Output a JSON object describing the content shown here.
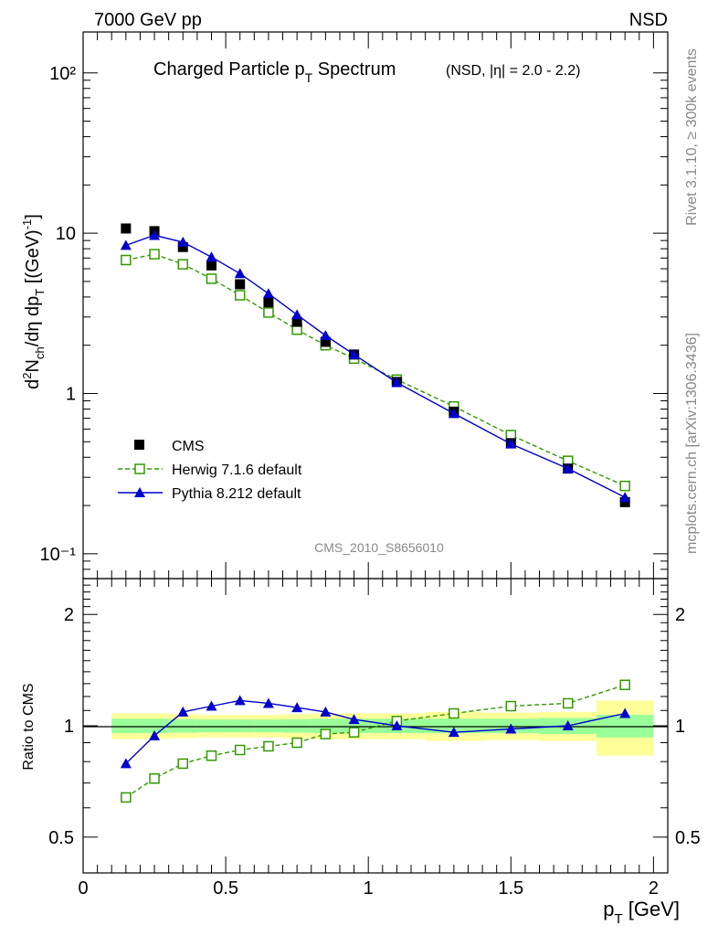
{
  "header": {
    "left": "7000 GeV pp",
    "right": "NSD"
  },
  "side_labels": {
    "rivet": "Rivet 3.1.10, ≥ 300k events",
    "mcplots": "mcplots.cern.ch [arXiv:1306.3436]"
  },
  "watermark": "CMS_2010_S8656010",
  "chart_data": [
    {
      "type": "scatter",
      "title": "Charged Particle pT Spectrum",
      "title_main": "Charged Particle p",
      "title_sub": "T",
      "title_rest": " Spectrum",
      "subtitle": "(NSD, |η| = 2.0 - 2.2)",
      "ylabel": "d²N_ch/dη dp_T [(GeV)^-1]",
      "yscale": "log",
      "ylim": [
        0.07,
        180
      ],
      "xlim": [
        0,
        2.05
      ],
      "ytick_labels": [
        "10⁻¹",
        "1",
        "10",
        "10²"
      ],
      "x": [
        0.15,
        0.25,
        0.35,
        0.45,
        0.55,
        0.65,
        0.75,
        0.85,
        0.95,
        1.1,
        1.3,
        1.5,
        1.7,
        1.9
      ],
      "series": [
        {
          "name": "CMS",
          "style": "marker",
          "color": "#000000",
          "values": [
            10.7,
            10.3,
            8.2,
            6.3,
            4.8,
            3.7,
            2.8,
            2.1,
            1.75,
            1.18,
            0.77,
            0.49,
            0.34,
            0.21
          ]
        },
        {
          "name": "Herwig 7.1.6 default",
          "style": "dashed",
          "color": "#339900",
          "values": [
            6.8,
            7.4,
            6.4,
            5.2,
            4.1,
            3.2,
            2.5,
            2.0,
            1.65,
            1.22,
            0.83,
            0.55,
            0.38,
            0.265
          ]
        },
        {
          "name": "Pythia 8.212 default",
          "style": "solid",
          "color": "#0000cc",
          "values": [
            8.4,
            9.7,
            8.8,
            7.1,
            5.6,
            4.2,
            3.1,
            2.3,
            1.75,
            1.17,
            0.75,
            0.485,
            0.34,
            0.225
          ]
        }
      ]
    },
    {
      "type": "scatter",
      "title": "",
      "ylabel": "Ratio to CMS",
      "xlabel": "p_T [GeV]",
      "xlabel_main": "p",
      "xlabel_sub": "T",
      "xlabel_rest": " [GeV]",
      "yscale": "log",
      "ylim": [
        0.4,
        2.5
      ],
      "xlim": [
        0,
        2.05
      ],
      "ytick_labels": [
        "0.5",
        "1",
        "2"
      ],
      "xtick_labels": [
        "0",
        "0.5",
        "1",
        "1.5",
        "2"
      ],
      "x": [
        0.15,
        0.25,
        0.35,
        0.45,
        0.55,
        0.65,
        0.75,
        0.85,
        0.95,
        1.1,
        1.3,
        1.5,
        1.7,
        1.9
      ],
      "band_bins": [
        0.1,
        0.2,
        0.3,
        0.4,
        0.5,
        0.6,
        0.7,
        0.8,
        0.9,
        1.0,
        1.2,
        1.4,
        1.6,
        1.8,
        2.0
      ],
      "band_inner": [
        0.045,
        0.045,
        0.042,
        0.04,
        0.04,
        0.04,
        0.042,
        0.045,
        0.045,
        0.045,
        0.045,
        0.045,
        0.05,
        0.07
      ],
      "band_outer": [
        0.08,
        0.08,
        0.075,
        0.07,
        0.07,
        0.07,
        0.075,
        0.08,
        0.08,
        0.08,
        0.09,
        0.085,
        0.09,
        0.17
      ],
      "band_colors": {
        "outer": "#ffff99",
        "inner": "#99ff99"
      },
      "series": [
        {
          "name": "Herwig 7.1.6 default",
          "style": "dashed",
          "color": "#339900",
          "values": [
            0.64,
            0.72,
            0.79,
            0.83,
            0.86,
            0.88,
            0.9,
            0.95,
            0.96,
            1.03,
            1.08,
            1.13,
            1.15,
            1.29
          ]
        },
        {
          "name": "Pythia 8.212 default",
          "style": "solid",
          "color": "#0000cc",
          "values": [
            0.79,
            0.94,
            1.09,
            1.13,
            1.17,
            1.15,
            1.12,
            1.09,
            1.04,
            1.0,
            0.96,
            0.98,
            1.0,
            1.08
          ]
        }
      ]
    }
  ]
}
